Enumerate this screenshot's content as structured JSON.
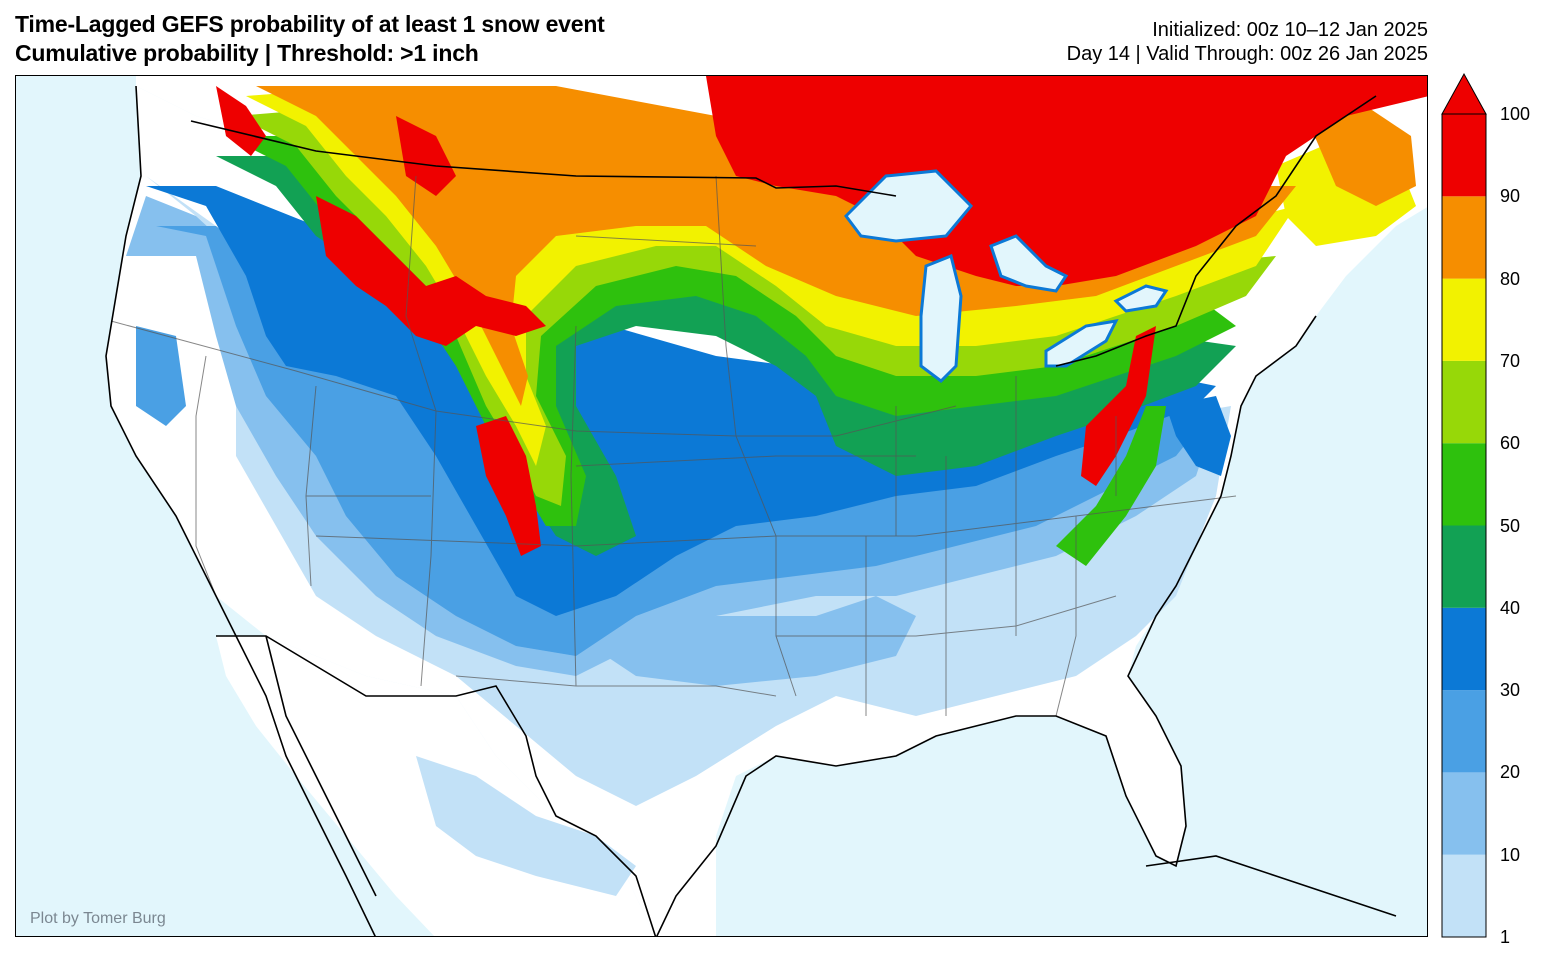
{
  "header": {
    "title_line1": "Time-Lagged GEFS probability of at least 1 snow event",
    "title_line2": "Cumulative probability | Threshold: >1 inch",
    "initialized": "Initialized: 00z 10–12 Jan 2025",
    "valid": "Day 14 | Valid Through: 00z 26 Jan 2025"
  },
  "credit": "Plot by Tomer Burg",
  "colorbar": {
    "ticks": [
      "1",
      "10",
      "20",
      "30",
      "40",
      "50",
      "60",
      "70",
      "80",
      "90",
      "100"
    ],
    "colors": [
      "#c2e1f7",
      "#86c0ee",
      "#4aa0e4",
      "#0c79d6",
      "#12a154",
      "#2ec10d",
      "#97d808",
      "#f2f200",
      "#f68e00",
      "#ee0000"
    ],
    "extend": "max"
  },
  "map_colors": {
    "ocean": "#e2f6fc",
    "land_zero": "#ffffff",
    "country_border": "#000000",
    "state_border": "#555555"
  }
}
